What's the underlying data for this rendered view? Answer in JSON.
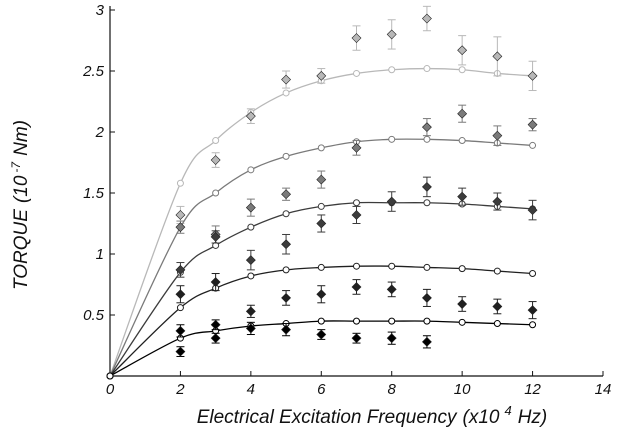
{
  "chart_data": {
    "type": "scatter",
    "xlabel": "Electrical Excitation Frequency",
    "xlabel_unit_prefix": "(x10",
    "xlabel_unit_exp": "4",
    "xlabel_unit_suffix": "Hz)",
    "ylabel": "TORQUE",
    "ylabel_unit_prefix": "(10",
    "ylabel_unit_exp": "-7",
    "ylabel_unit_suffix": "Nm)",
    "xlim": [
      0,
      14
    ],
    "ylim": [
      0,
      3
    ],
    "x_ticks": [
      "0",
      "2",
      "4",
      "6",
      "8",
      "10",
      "12",
      "14"
    ],
    "y_ticks": [
      "0.5",
      "1",
      "1.5",
      "2",
      "2.5",
      "3"
    ],
    "grid": false,
    "series": [
      {
        "color": "#b8b8b8",
        "points": [
          {
            "x": 2,
            "y": 1.32,
            "err": 0.07
          },
          {
            "x": 3,
            "y": 1.77,
            "err": 0.06
          },
          {
            "x": 4,
            "y": 2.13,
            "err": 0.06
          },
          {
            "x": 5,
            "y": 2.43,
            "err": 0.07
          },
          {
            "x": 6,
            "y": 2.46,
            "err": 0.06
          },
          {
            "x": 7,
            "y": 2.77,
            "err": 0.1
          },
          {
            "x": 8,
            "y": 2.8,
            "err": 0.12
          },
          {
            "x": 9,
            "y": 2.93,
            "err": 0.1
          },
          {
            "x": 10,
            "y": 2.67,
            "err": 0.12
          },
          {
            "x": 11,
            "y": 2.62,
            "err": 0.16
          },
          {
            "x": 12,
            "y": 2.46,
            "err": 0.12
          }
        ],
        "fit": [
          {
            "x": 0,
            "y": 0
          },
          {
            "x": 2,
            "y": 1.58
          },
          {
            "x": 3,
            "y": 1.93
          },
          {
            "x": 4,
            "y": 2.16
          },
          {
            "x": 5,
            "y": 2.32
          },
          {
            "x": 6,
            "y": 2.42
          },
          {
            "x": 7,
            "y": 2.48
          },
          {
            "x": 8,
            "y": 2.51
          },
          {
            "x": 9,
            "y": 2.52
          },
          {
            "x": 10,
            "y": 2.51
          },
          {
            "x": 11,
            "y": 2.48
          },
          {
            "x": 12,
            "y": 2.46
          }
        ]
      },
      {
        "color": "#7a7a7a",
        "points": [
          {
            "x": 2,
            "y": 1.22,
            "err": 0.05
          },
          {
            "x": 3,
            "y": 1.16,
            "err": 0.07
          },
          {
            "x": 4,
            "y": 1.38,
            "err": 0.07
          },
          {
            "x": 5,
            "y": 1.49,
            "err": 0.05
          },
          {
            "x": 6,
            "y": 1.61,
            "err": 0.07
          },
          {
            "x": 7,
            "y": 1.87,
            "err": 0.06
          },
          {
            "x": 9,
            "y": 2.04,
            "err": 0.07
          },
          {
            "x": 10,
            "y": 2.15,
            "err": 0.07
          },
          {
            "x": 11,
            "y": 1.97,
            "err": 0.08
          },
          {
            "x": 12,
            "y": 2.06,
            "err": 0.05
          }
        ],
        "fit": [
          {
            "x": 0,
            "y": 0
          },
          {
            "x": 2,
            "y": 1.22
          },
          {
            "x": 3,
            "y": 1.5
          },
          {
            "x": 4,
            "y": 1.69
          },
          {
            "x": 5,
            "y": 1.8
          },
          {
            "x": 6,
            "y": 1.87
          },
          {
            "x": 7,
            "y": 1.92
          },
          {
            "x": 8,
            "y": 1.94
          },
          {
            "x": 9,
            "y": 1.94
          },
          {
            "x": 10,
            "y": 1.93
          },
          {
            "x": 11,
            "y": 1.91
          },
          {
            "x": 12,
            "y": 1.89
          }
        ]
      },
      {
        "color": "#3c3c3c",
        "points": [
          {
            "x": 2,
            "y": 0.87,
            "err": 0.06
          },
          {
            "x": 3,
            "y": 1.14,
            "err": 0.05
          },
          {
            "x": 4,
            "y": 0.95,
            "err": 0.08
          },
          {
            "x": 5,
            "y": 1.08,
            "err": 0.08
          },
          {
            "x": 6,
            "y": 1.25,
            "err": 0.07
          },
          {
            "x": 7,
            "y": 1.32,
            "err": 0.07
          },
          {
            "x": 8,
            "y": 1.43,
            "err": 0.08
          },
          {
            "x": 9,
            "y": 1.55,
            "err": 0.08
          },
          {
            "x": 10,
            "y": 1.47,
            "err": 0.07
          },
          {
            "x": 11,
            "y": 1.43,
            "err": 0.07
          },
          {
            "x": 12,
            "y": 1.36,
            "err": 0.08
          }
        ],
        "fit": [
          {
            "x": 0,
            "y": 0
          },
          {
            "x": 2,
            "y": 0.85
          },
          {
            "x": 3,
            "y": 1.07
          },
          {
            "x": 4,
            "y": 1.22
          },
          {
            "x": 5,
            "y": 1.33
          },
          {
            "x": 6,
            "y": 1.39
          },
          {
            "x": 7,
            "y": 1.42
          },
          {
            "x": 8,
            "y": 1.42
          },
          {
            "x": 9,
            "y": 1.42
          },
          {
            "x": 10,
            "y": 1.41
          },
          {
            "x": 11,
            "y": 1.39
          },
          {
            "x": 12,
            "y": 1.37
          }
        ]
      },
      {
        "color": "#202020",
        "points": [
          {
            "x": 2,
            "y": 0.67,
            "err": 0.07
          },
          {
            "x": 3,
            "y": 0.77,
            "err": 0.07
          },
          {
            "x": 4,
            "y": 0.53,
            "err": 0.05
          },
          {
            "x": 5,
            "y": 0.64,
            "err": 0.06
          },
          {
            "x": 6,
            "y": 0.67,
            "err": 0.07
          },
          {
            "x": 7,
            "y": 0.73,
            "err": 0.06
          },
          {
            "x": 8,
            "y": 0.71,
            "err": 0.06
          },
          {
            "x": 9,
            "y": 0.64,
            "err": 0.07
          },
          {
            "x": 10,
            "y": 0.59,
            "err": 0.06
          },
          {
            "x": 11,
            "y": 0.57,
            "err": 0.06
          },
          {
            "x": 12,
            "y": 0.54,
            "err": 0.07
          }
        ],
        "fit": [
          {
            "x": 0,
            "y": 0
          },
          {
            "x": 2,
            "y": 0.56
          },
          {
            "x": 3,
            "y": 0.72
          },
          {
            "x": 4,
            "y": 0.82
          },
          {
            "x": 5,
            "y": 0.87
          },
          {
            "x": 6,
            "y": 0.89
          },
          {
            "x": 7,
            "y": 0.9
          },
          {
            "x": 8,
            "y": 0.9
          },
          {
            "x": 9,
            "y": 0.89
          },
          {
            "x": 10,
            "y": 0.88
          },
          {
            "x": 11,
            "y": 0.86
          },
          {
            "x": 12,
            "y": 0.84
          }
        ]
      },
      {
        "color": "#000000",
        "points": [
          {
            "x": 2,
            "y": 0.37,
            "err": 0.05
          },
          {
            "x": 2,
            "y": 0.2,
            "err": 0.04
          },
          {
            "x": 3,
            "y": 0.42,
            "err": 0.04
          },
          {
            "x": 3,
            "y": 0.31,
            "err": 0.04
          },
          {
            "x": 4,
            "y": 0.39,
            "err": 0.05
          },
          {
            "x": 5,
            "y": 0.38,
            "err": 0.05
          },
          {
            "x": 6,
            "y": 0.34,
            "err": 0.04
          },
          {
            "x": 7,
            "y": 0.31,
            "err": 0.04
          },
          {
            "x": 8,
            "y": 0.31,
            "err": 0.05
          },
          {
            "x": 9,
            "y": 0.28,
            "err": 0.05
          }
        ],
        "fit": [
          {
            "x": 0,
            "y": 0
          },
          {
            "x": 2,
            "y": 0.31
          },
          {
            "x": 3,
            "y": 0.37
          },
          {
            "x": 4,
            "y": 0.41
          },
          {
            "x": 5,
            "y": 0.43
          },
          {
            "x": 6,
            "y": 0.45
          },
          {
            "x": 7,
            "y": 0.45
          },
          {
            "x": 8,
            "y": 0.45
          },
          {
            "x": 9,
            "y": 0.45
          },
          {
            "x": 10,
            "y": 0.44
          },
          {
            "x": 11,
            "y": 0.43
          },
          {
            "x": 12,
            "y": 0.42
          }
        ]
      }
    ]
  }
}
